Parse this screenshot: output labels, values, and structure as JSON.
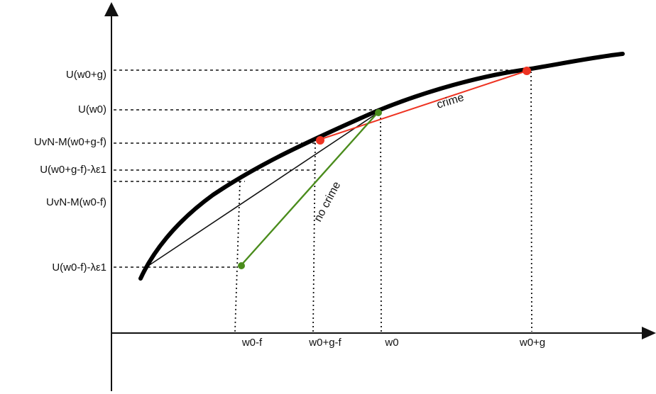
{
  "diagram": {
    "y_labels": {
      "u_w0_plus_g": "U(w0+g)",
      "u_w0": "U(w0)",
      "u_vnm_w0_plus_g_minus_f": "UvN-M(w0+g-f)",
      "u_w0_plus_g_minus_f_minus_le1": "U(w0+g-f)-λε1",
      "u_vnm_w0_minus_f": "UvN-M(w0-f)",
      "u_w0_minus_f_minus_le1": "U(w0-f)-λε1"
    },
    "x_labels": {
      "w0_minus_f": "w0-f",
      "w0_plus_g_minus_f": "w0+g-f",
      "w0": "w0",
      "w0_plus_g": "w0+g"
    },
    "segment_labels": {
      "crime": "crime",
      "no_crime": "no crime"
    },
    "colors": {
      "curve": "#000000",
      "crime_line": "#ee3322",
      "no_crime_line": "#4a8c1c",
      "crime_point": "#ee3322",
      "no_crime_point": "#4a8c1c"
    }
  }
}
